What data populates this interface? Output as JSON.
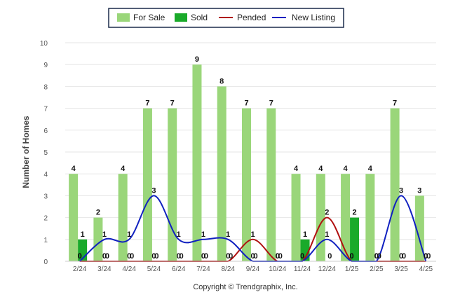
{
  "chart_data": {
    "type": "bar",
    "categories": [
      "2/24",
      "3/24",
      "4/24",
      "5/24",
      "6/24",
      "7/24",
      "8/24",
      "9/24",
      "10/24",
      "11/24",
      "12/24",
      "1/25",
      "2/25",
      "3/25",
      "4/25"
    ],
    "series": [
      {
        "name": "For Sale",
        "kind": "bar",
        "color": "#9ad67a",
        "values": [
          4,
          2,
          4,
          7,
          7,
          9,
          8,
          7,
          7,
          4,
          4,
          4,
          4,
          7,
          3
        ]
      },
      {
        "name": "Sold",
        "kind": "bar",
        "color": "#1aaa2a",
        "values": [
          1,
          0,
          0,
          0,
          0,
          0,
          0,
          0,
          0,
          1,
          0,
          2,
          0,
          0,
          0
        ]
      },
      {
        "name": "Pended",
        "kind": "line",
        "color": "#b01010",
        "values": [
          0,
          0,
          0,
          0,
          0,
          0,
          0,
          1,
          0,
          0,
          2,
          0,
          0,
          0,
          0
        ]
      },
      {
        "name": "New Listing",
        "kind": "line",
        "color": "#1020c0",
        "values": [
          0,
          1,
          1,
          3,
          1,
          1,
          1,
          0,
          0,
          0,
          1,
          0,
          0,
          3,
          0
        ]
      }
    ],
    "ylabel": "Number of Homes",
    "xlabel": "",
    "ylim": [
      0,
      10
    ],
    "yticks": [
      0,
      1,
      2,
      3,
      4,
      5,
      6,
      7,
      8,
      9,
      10
    ],
    "grid": true,
    "legend": "top-center"
  },
  "copyright": "Copyright © Trendgraphix, Inc."
}
